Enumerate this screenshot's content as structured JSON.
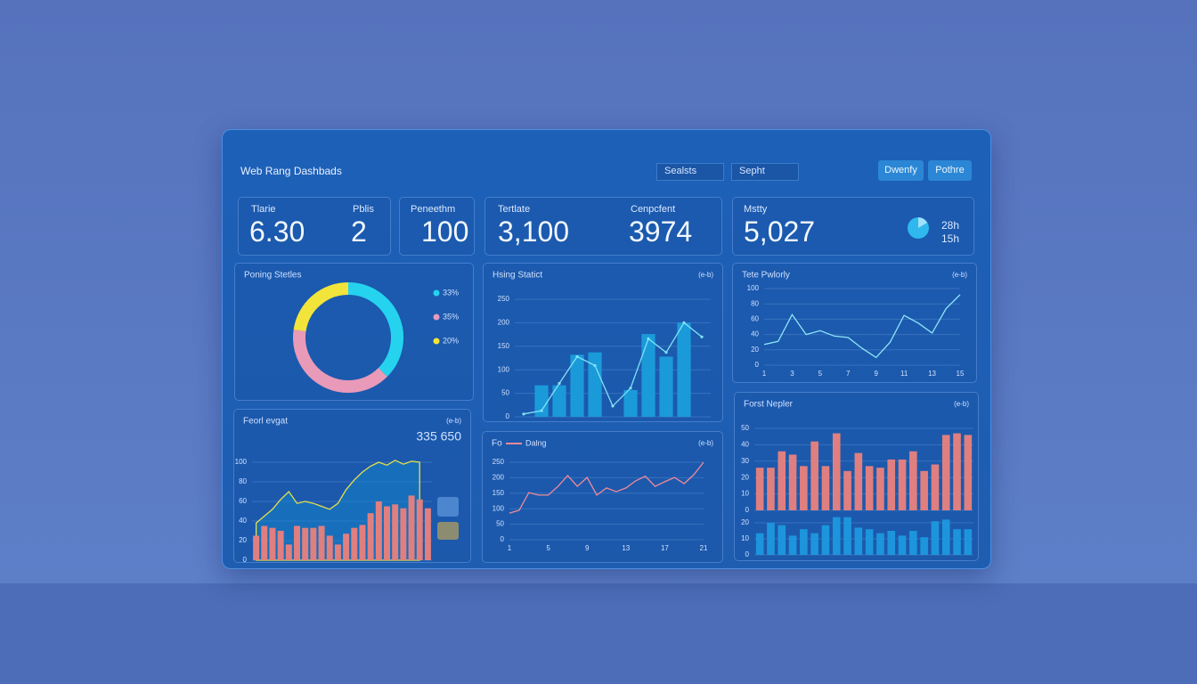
{
  "header": {
    "title": "Web Rang Dashbads",
    "dropdowns": [
      "Sealsts",
      "Sepht"
    ],
    "buttons": [
      "Dwenfy",
      "Pothre"
    ]
  },
  "kpis": [
    {
      "items": [
        {
          "label": "Tlarie",
          "value": "6.30"
        },
        {
          "label": "Pblis",
          "value": "2"
        }
      ]
    },
    {
      "items": [
        {
          "label": "Peneethm",
          "value": "100"
        }
      ]
    },
    {
      "items": [
        {
          "label": "Tertlate",
          "value": "3,100"
        },
        {
          "label": "Cenpcfent",
          "value": "3974"
        }
      ]
    },
    {
      "items": [
        {
          "label": "Mstty",
          "value": "5,027"
        }
      ],
      "side": [
        "28h",
        "15h"
      ]
    }
  ],
  "chart_data": [
    {
      "type": "donut",
      "title": "Poning Stetles",
      "values": [
        33,
        35,
        20
      ],
      "value_labels": [
        "33%",
        "35%",
        "20%"
      ],
      "colors": [
        "#25d3ef",
        "#e89ab8",
        "#f2e43a"
      ]
    },
    {
      "type": "combo",
      "title": "Hsing Statict",
      "note": "(e-b)",
      "categories": [
        null,
        null,
        null,
        null,
        null,
        null,
        null,
        null,
        null,
        null,
        null
      ],
      "series": [
        {
          "kind": "bar",
          "color": "#1b9ad9",
          "values": [
            null,
            67,
            67,
            132,
            137,
            null,
            57,
            176,
            128,
            200,
            null
          ]
        },
        {
          "kind": "line",
          "color": "#7fe3f7",
          "values": [
            6,
            13,
            71,
            128,
            109,
            23,
            61,
            166,
            137,
            200,
            170
          ]
        }
      ],
      "ylim": [
        0,
        250
      ],
      "yticks": [
        0,
        50,
        100,
        150,
        200,
        250
      ],
      "grid": true
    },
    {
      "type": "line",
      "title": "Tete Pwlorly",
      "note": "(e-b)",
      "x": [
        1,
        2,
        3,
        4,
        5,
        6,
        7,
        8,
        9,
        10,
        11,
        12,
        13,
        14,
        15
      ],
      "values": [
        27,
        31,
        66,
        40,
        45,
        38,
        36,
        22,
        10,
        30,
        65,
        55,
        42,
        74,
        92
      ],
      "color": "#8fe6f8",
      "xlim": [
        1,
        15
      ],
      "xticks": [
        1,
        3,
        5,
        7,
        9,
        11,
        13,
        15
      ],
      "ylim": [
        0,
        100
      ],
      "yticks": [
        0,
        20,
        40,
        60,
        80,
        100
      ],
      "grid": true
    },
    {
      "type": "combo",
      "title": "Feorl evgat",
      "note": "(e-b)",
      "annotation": "335 650",
      "categories": [
        null,
        null,
        null,
        null,
        null,
        null,
        null,
        null,
        null,
        null,
        null,
        null,
        null,
        null,
        null,
        null,
        null,
        null,
        null,
        null,
        null,
        null
      ],
      "series": [
        {
          "kind": "area",
          "color": "#e6e04a",
          "values": [
            38,
            45,
            52,
            62,
            70,
            58,
            60,
            58,
            55,
            52,
            58,
            72,
            82,
            90,
            96,
            100,
            97,
            102,
            98,
            101,
            100,
            null
          ]
        },
        {
          "kind": "bar",
          "color": "#e07f7f",
          "values": [
            25,
            35,
            33,
            30,
            16,
            35,
            33,
            33,
            35,
            25,
            16,
            27,
            33,
            36,
            48,
            60,
            55,
            57,
            53,
            66,
            62,
            53
          ]
        }
      ],
      "ylim": [
        0,
        120
      ],
      "yticks": [
        0,
        20,
        40,
        60,
        80,
        100
      ],
      "grid": true
    },
    {
      "type": "line",
      "title": "Fo",
      "note": "(e-b)",
      "series": [
        {
          "name": "Dalng",
          "color": "#f08a9a",
          "values": [
            86,
            95,
            152,
            144,
            144,
            172,
            207,
            172,
            201,
            144,
            167,
            155,
            167,
            190,
            205,
            172,
            187,
            201,
            181,
            210,
            250
          ]
        }
      ],
      "x": [
        1,
        2,
        3,
        4,
        5,
        6,
        7,
        8,
        9,
        10,
        11,
        12,
        13,
        14,
        15,
        16,
        17,
        18,
        19,
        20,
        21
      ],
      "xlim": [
        1,
        21
      ],
      "xticks": [
        1,
        5,
        9,
        13,
        17,
        21
      ],
      "ylim": [
        0,
        250
      ],
      "yticks": [
        0,
        50,
        100,
        150,
        200,
        250
      ],
      "grid": true
    },
    {
      "type": "split",
      "title": "Forst Nepler",
      "note": "(e-b)",
      "categories": [
        null,
        null,
        null,
        null,
        null,
        null,
        null,
        null,
        null,
        null,
        null,
        null,
        null,
        null,
        null,
        null,
        null,
        null,
        null,
        null
      ],
      "series": [
        {
          "color": "#e07f7f",
          "values": [
            26,
            26,
            36,
            34,
            27,
            42,
            27,
            47,
            24,
            35,
            27,
            26,
            31,
            31,
            36,
            24,
            28,
            46,
            47,
            46
          ]
        },
        {
          "color": "#1d95dc",
          "axis": "y2",
          "values": [
            13.5,
            20,
            18.5,
            12,
            16,
            13.5,
            18.5,
            23.5,
            23.5,
            17,
            16,
            13.5,
            15,
            12,
            15,
            11,
            21,
            22,
            16,
            16
          ]
        }
      ],
      "ylim": [
        0,
        50
      ],
      "yticks": [
        0,
        10,
        20,
        30,
        40,
        50
      ],
      "y2lim": [
        0,
        25
      ],
      "y2ticks": [
        0,
        10,
        20
      ],
      "grid": true
    }
  ]
}
